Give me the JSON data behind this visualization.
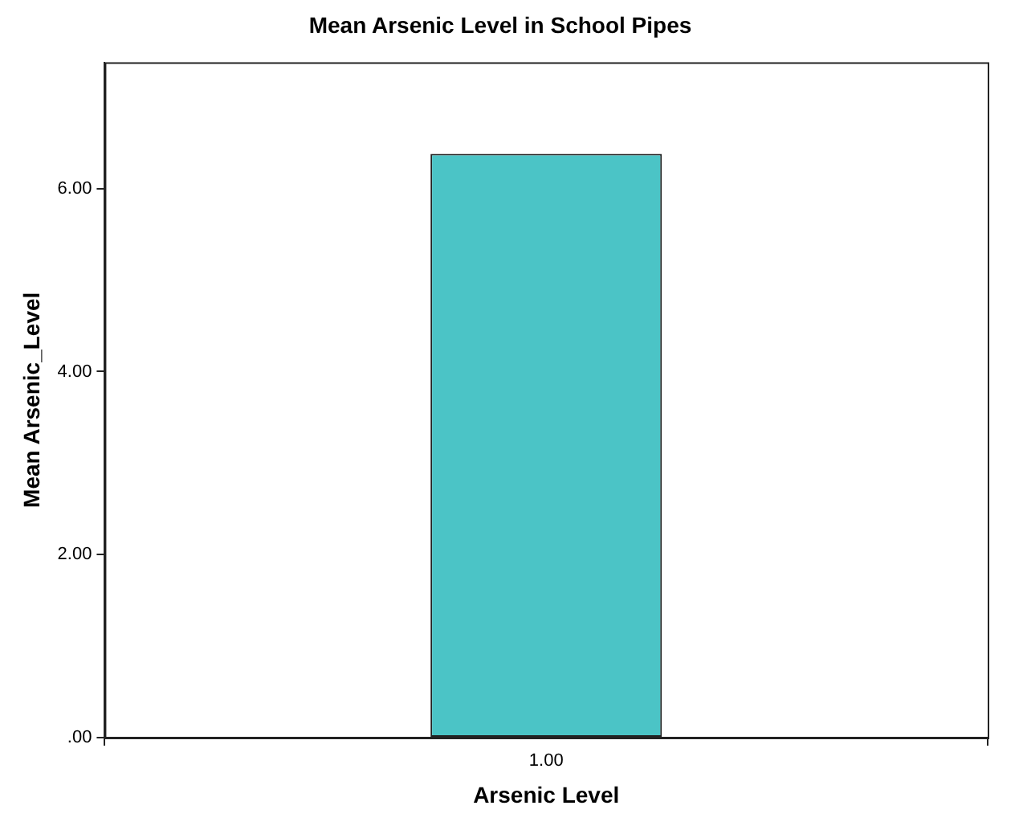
{
  "chart_data": {
    "type": "bar",
    "title": "Mean Arsenic Level in School Pipes",
    "xlabel": "Arsenic Level",
    "ylabel": "Mean Arsenic_Level",
    "categories": [
      "1.00"
    ],
    "values": [
      6.38
    ],
    "color": "#4bc4c6",
    "ylim": [
      0,
      7.38
    ],
    "yticks": [
      {
        "value": 0,
        "label": ".00"
      },
      {
        "value": 2,
        "label": "2.00"
      },
      {
        "value": 4,
        "label": "4.00"
      },
      {
        "value": 6,
        "label": "6.00"
      }
    ],
    "grid": false,
    "legend": false
  }
}
